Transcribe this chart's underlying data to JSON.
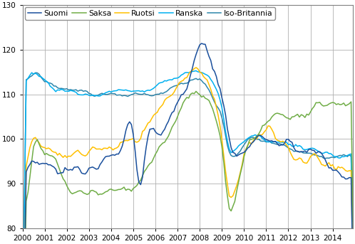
{
  "ylim": [
    80,
    130
  ],
  "xlim": [
    2000.0,
    2014.92
  ],
  "yticks": [
    80,
    90,
    100,
    110,
    120,
    130
  ],
  "xtick_labels": [
    "2000",
    "2001",
    "2002",
    "2003",
    "2004",
    "2005",
    "2006",
    "2007",
    "2008",
    "2009",
    "2010",
    "2011",
    "2012",
    "2013",
    "2014"
  ],
  "colors": {
    "Suomi": "#1a4f9c",
    "Saksa": "#70ad47",
    "Ruotsi": "#ffc000",
    "Ranska": "#00b0f0",
    "Iso-Britannia": "#2e86ab"
  },
  "linewidth": 1.1,
  "legend_fontsize": 7.8,
  "tick_fontsize": 7.5,
  "grid_color": "#b0b0b0",
  "background_color": "#ffffff",
  "key_t": [
    2000.0,
    2000.25,
    2000.5,
    2000.75,
    2001.0,
    2001.5,
    2002.0,
    2002.5,
    2003.0,
    2003.5,
    2004.0,
    2004.5,
    2005.0,
    2005.25,
    2005.5,
    2006.0,
    2006.5,
    2007.0,
    2007.5,
    2008.0,
    2008.25,
    2008.5,
    2008.75,
    2009.0,
    2009.25,
    2009.5,
    2009.75,
    2010.0,
    2010.5,
    2011.0,
    2011.5,
    2012.0,
    2012.5,
    2013.0,
    2013.5,
    2014.0,
    2014.83
  ],
  "suomi_v": [
    90,
    93,
    95,
    94,
    94,
    93,
    93,
    93,
    93,
    95,
    97,
    99,
    101,
    88,
    98,
    101,
    104,
    108,
    113,
    121,
    120,
    117,
    113,
    108,
    100,
    96,
    96,
    97,
    100,
    100,
    99,
    99,
    97,
    98,
    96,
    93,
    92
  ],
  "saksa_v": [
    87,
    90,
    101,
    98,
    97,
    94,
    89,
    88,
    88,
    88,
    89,
    89,
    89,
    91,
    93,
    97,
    101,
    106,
    110,
    110,
    109,
    107,
    103,
    97,
    84,
    85,
    91,
    97,
    101,
    104,
    106,
    105,
    105,
    107,
    108,
    108,
    109
  ],
  "ruotsi_v": [
    90,
    97,
    101,
    99,
    98,
    97,
    97,
    97,
    97,
    98,
    98,
    99,
    99,
    100,
    103,
    106,
    109,
    112,
    115,
    115,
    114,
    111,
    106,
    100,
    88,
    87,
    91,
    97,
    100,
    102,
    100,
    98,
    95,
    96,
    95,
    94,
    93
  ],
  "ranska_v": [
    112,
    114,
    115,
    114,
    113,
    111,
    111,
    110,
    110,
    110,
    111,
    111,
    111,
    111,
    111,
    112,
    113,
    114,
    115,
    115,
    114,
    113,
    111,
    106,
    98,
    97,
    99,
    100,
    101,
    100,
    99,
    99,
    98,
    98,
    97,
    96,
    97
  ],
  "isobritannia_v": [
    113,
    114,
    115,
    114,
    113,
    112,
    111,
    111,
    110,
    110,
    110,
    110,
    110,
    110,
    110,
    110,
    111,
    112,
    113,
    113,
    112,
    110,
    107,
    104,
    97,
    96,
    97,
    99,
    100,
    100,
    99,
    98,
    97,
    97,
    96,
    96,
    96
  ]
}
